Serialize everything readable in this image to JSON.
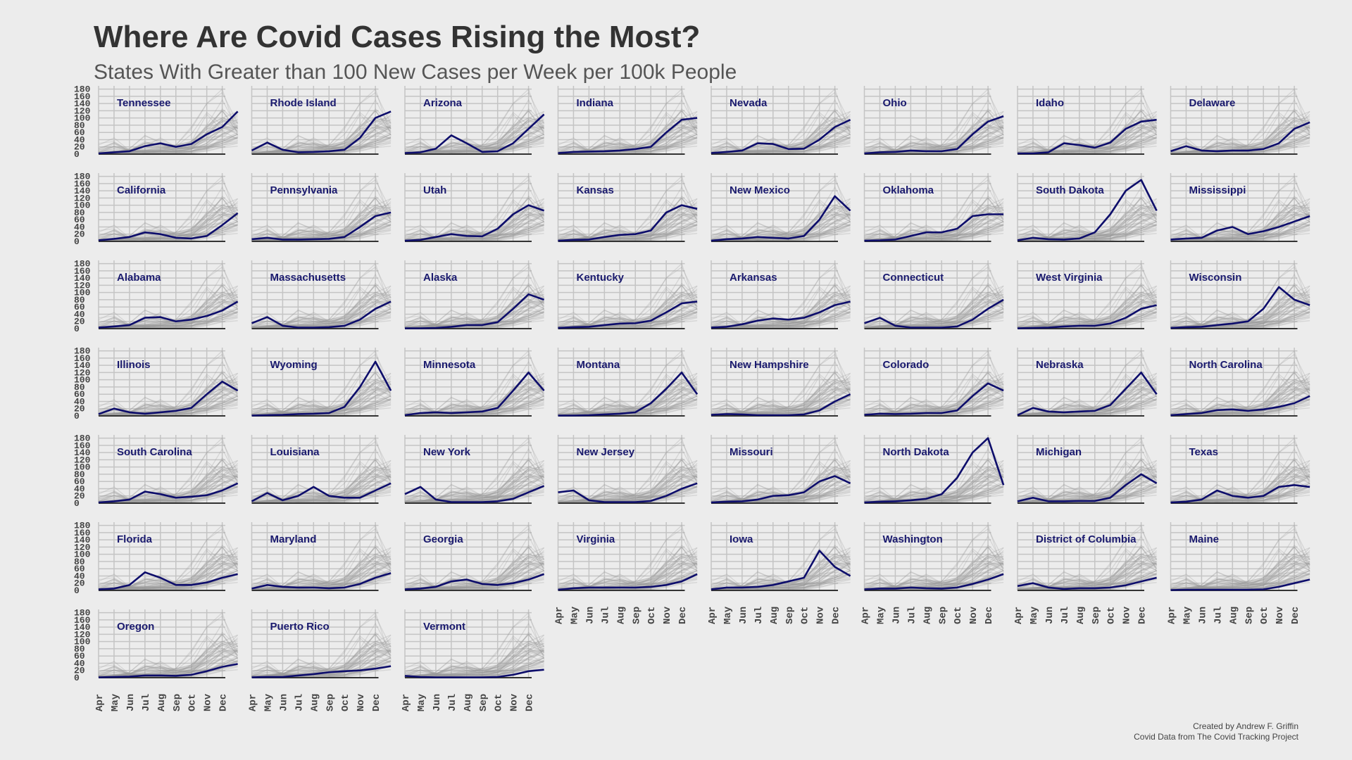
{
  "title": "Where Are Covid Cases Rising the Most?",
  "subtitle": "States With Greater than 100 New Cases per Week per 100k People",
  "caption": {
    "line1": "Created by Andrew F. Griffin",
    "line2": "Covid Data from The Covid Tracking Project"
  },
  "colors": {
    "background": "#ececec",
    "highlight": "#0d0d6b",
    "context": "#9a9a9a",
    "grid": "#c4c4c4",
    "label": "#1a1a6e"
  },
  "chart_data": {
    "type": "line",
    "facet": "small-multiples",
    "columns": 8,
    "x_ticks": [
      "Apr",
      "May",
      "Jun",
      "Jul",
      "Aug",
      "Sep",
      "Oct",
      "Nov",
      "Dec"
    ],
    "y_ticks": [
      0,
      20,
      40,
      60,
      80,
      100,
      120,
      140,
      160,
      180
    ],
    "ylim": [
      0,
      185
    ],
    "x_month_index": [
      0,
      1,
      2,
      3,
      4,
      5,
      6,
      7,
      8,
      9
    ],
    "x_note": "values sampled at month starts Apr 1 to Dec 1, plus final point at ~Dec 5",
    "series": [
      {
        "name": "Tennessee",
        "values": [
          2,
          5,
          8,
          22,
          30,
          20,
          28,
          55,
          75,
          118
        ]
      },
      {
        "name": "Rhode Island",
        "values": [
          10,
          32,
          12,
          5,
          6,
          8,
          12,
          45,
          100,
          118
        ]
      },
      {
        "name": "Arizona",
        "values": [
          3,
          5,
          15,
          52,
          30,
          6,
          8,
          30,
          70,
          110
        ]
      },
      {
        "name": "Indiana",
        "values": [
          3,
          6,
          7,
          8,
          10,
          14,
          20,
          60,
          95,
          100
        ]
      },
      {
        "name": "Nevada",
        "values": [
          3,
          6,
          10,
          30,
          28,
          14,
          15,
          40,
          75,
          95
        ]
      },
      {
        "name": "Ohio",
        "values": [
          2,
          5,
          6,
          10,
          8,
          8,
          14,
          55,
          90,
          105
        ]
      },
      {
        "name": "Idaho",
        "values": [
          2,
          2,
          5,
          30,
          25,
          18,
          32,
          70,
          90,
          95
        ]
      },
      {
        "name": "Delaware",
        "values": [
          8,
          22,
          10,
          8,
          10,
          10,
          14,
          30,
          70,
          88
        ]
      },
      {
        "name": "California",
        "values": [
          3,
          7,
          12,
          25,
          20,
          10,
          8,
          15,
          45,
          78
        ]
      },
      {
        "name": "Pennsylvania",
        "values": [
          6,
          10,
          5,
          5,
          6,
          7,
          12,
          40,
          70,
          80
        ]
      },
      {
        "name": "Utah",
        "values": [
          2,
          4,
          12,
          20,
          15,
          14,
          35,
          75,
          100,
          85
        ]
      },
      {
        "name": "Kansas",
        "values": [
          2,
          4,
          5,
          12,
          18,
          20,
          30,
          80,
          100,
          90
        ]
      },
      {
        "name": "New Mexico",
        "values": [
          2,
          6,
          8,
          12,
          10,
          8,
          15,
          60,
          125,
          85
        ]
      },
      {
        "name": "Oklahoma",
        "values": [
          2,
          3,
          5,
          15,
          25,
          25,
          35,
          70,
          75,
          75
        ]
      },
      {
        "name": "South Dakota",
        "values": [
          3,
          10,
          6,
          5,
          8,
          25,
          75,
          140,
          170,
          85
        ]
      },
      {
        "name": "Mississippi",
        "values": [
          5,
          8,
          10,
          30,
          40,
          20,
          28,
          40,
          55,
          70
        ]
      },
      {
        "name": "Alabama",
        "values": [
          3,
          6,
          10,
          30,
          32,
          20,
          25,
          35,
          50,
          75
        ]
      },
      {
        "name": "Massachusetts",
        "values": [
          15,
          32,
          8,
          3,
          3,
          4,
          8,
          25,
          55,
          75
        ]
      },
      {
        "name": "Alaska",
        "values": [
          1,
          1,
          2,
          5,
          10,
          10,
          18,
          55,
          95,
          80
        ]
      },
      {
        "name": "Kentucky",
        "values": [
          2,
          4,
          5,
          10,
          14,
          15,
          22,
          45,
          70,
          75
        ]
      },
      {
        "name": "Arkansas",
        "values": [
          3,
          5,
          12,
          22,
          28,
          25,
          30,
          45,
          65,
          75
        ]
      },
      {
        "name": "Connecticut",
        "values": [
          15,
          30,
          8,
          3,
          3,
          3,
          6,
          25,
          55,
          80
        ]
      },
      {
        "name": "West Virginia",
        "values": [
          1,
          2,
          3,
          6,
          8,
          8,
          14,
          30,
          55,
          65
        ]
      },
      {
        "name": "Wisconsin",
        "values": [
          2,
          4,
          5,
          10,
          14,
          20,
          55,
          115,
          80,
          65
        ]
      },
      {
        "name": "Illinois",
        "values": [
          5,
          20,
          10,
          6,
          10,
          14,
          22,
          60,
          95,
          70
        ]
      },
      {
        "name": "Wyoming",
        "values": [
          1,
          2,
          3,
          5,
          6,
          8,
          25,
          80,
          150,
          70
        ]
      },
      {
        "name": "Minnesota",
        "values": [
          2,
          8,
          10,
          8,
          10,
          12,
          22,
          70,
          120,
          70
        ]
      },
      {
        "name": "Montana",
        "values": [
          1,
          1,
          2,
          4,
          6,
          10,
          35,
          75,
          120,
          60
        ]
      },
      {
        "name": "New Hampshire",
        "values": [
          3,
          5,
          4,
          2,
          2,
          2,
          4,
          15,
          40,
          60
        ]
      },
      {
        "name": "Colorado",
        "values": [
          3,
          6,
          5,
          6,
          8,
          8,
          15,
          55,
          90,
          70
        ]
      },
      {
        "name": "Nebraska",
        "values": [
          2,
          22,
          12,
          10,
          12,
          14,
          30,
          75,
          120,
          60
        ]
      },
      {
        "name": "North Carolina",
        "values": [
          2,
          5,
          8,
          16,
          18,
          14,
          18,
          25,
          35,
          55
        ]
      },
      {
        "name": "South Carolina",
        "values": [
          2,
          5,
          10,
          32,
          25,
          15,
          18,
          22,
          35,
          55
        ]
      },
      {
        "name": "Louisiana",
        "values": [
          5,
          28,
          8,
          20,
          45,
          20,
          15,
          15,
          35,
          55
        ]
      },
      {
        "name": "New York",
        "values": [
          25,
          45,
          10,
          3,
          3,
          3,
          5,
          12,
          30,
          48
        ]
      },
      {
        "name": "New Jersey",
        "values": [
          30,
          35,
          8,
          3,
          3,
          3,
          6,
          20,
          40,
          55
        ]
      },
      {
        "name": "Missouri",
        "values": [
          2,
          4,
          5,
          10,
          20,
          22,
          30,
          60,
          75,
          55
        ]
      },
      {
        "name": "North Dakota",
        "values": [
          2,
          4,
          5,
          8,
          12,
          25,
          70,
          140,
          180,
          50
        ]
      },
      {
        "name": "Michigan",
        "values": [
          5,
          15,
          5,
          5,
          6,
          6,
          15,
          50,
          80,
          55
        ]
      },
      {
        "name": "Texas",
        "values": [
          2,
          4,
          10,
          35,
          20,
          15,
          20,
          45,
          50,
          45
        ]
      },
      {
        "name": "Florida",
        "values": [
          3,
          5,
          15,
          50,
          35,
          15,
          15,
          22,
          35,
          45
        ]
      },
      {
        "name": "Maryland",
        "values": [
          5,
          15,
          10,
          8,
          8,
          6,
          8,
          18,
          35,
          48
        ]
      },
      {
        "name": "Georgia",
        "values": [
          3,
          5,
          10,
          25,
          30,
          18,
          15,
          20,
          30,
          45
        ]
      },
      {
        "name": "Virginia",
        "values": [
          2,
          6,
          8,
          8,
          8,
          8,
          10,
          15,
          25,
          45
        ]
      },
      {
        "name": "Iowa",
        "values": [
          3,
          8,
          8,
          10,
          15,
          25,
          35,
          110,
          65,
          40
        ]
      },
      {
        "name": "Washington",
        "values": [
          3,
          5,
          5,
          8,
          6,
          5,
          8,
          18,
          30,
          45
        ]
      },
      {
        "name": "District of Columbia",
        "values": [
          12,
          20,
          8,
          4,
          6,
          6,
          8,
          14,
          25,
          35
        ]
      },
      {
        "name": "Maine",
        "values": [
          1,
          2,
          2,
          2,
          2,
          2,
          3,
          10,
          20,
          30
        ]
      },
      {
        "name": "Oregon",
        "values": [
          1,
          2,
          3,
          6,
          6,
          5,
          8,
          18,
          30,
          38
        ]
      },
      {
        "name": "Puerto Rico",
        "values": [
          1,
          2,
          2,
          6,
          10,
          15,
          18,
          20,
          25,
          32
        ]
      },
      {
        "name": "Vermont",
        "values": [
          5,
          2,
          1,
          1,
          1,
          1,
          2,
          8,
          18,
          22
        ]
      }
    ]
  }
}
